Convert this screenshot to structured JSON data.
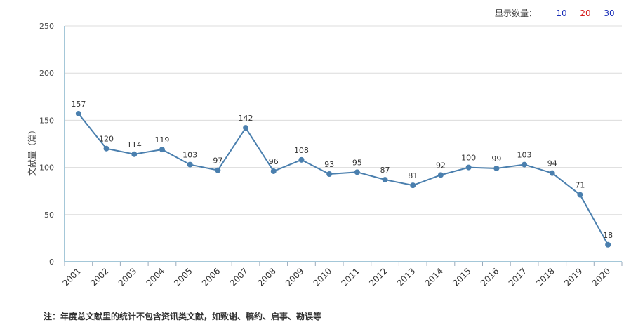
{
  "display": {
    "label": "显示数量：",
    "options": [
      {
        "label": "10",
        "color": "#1a2fb8"
      },
      {
        "label": "20",
        "color": "#d61f1f"
      },
      {
        "label": "30",
        "color": "#1a2fb8"
      }
    ]
  },
  "footnote": "注：年度总文献里的统计不包含资讯类文献，如致谢、稿约、启事、勘误等",
  "chart_data": {
    "type": "line",
    "ylabel": "文献量（篇）",
    "ylim": [
      0,
      250
    ],
    "yticks": [
      0,
      50,
      100,
      150,
      200,
      250
    ],
    "grid": true,
    "line_color": "#4a7fae",
    "categories": [
      "2001",
      "2002",
      "2003",
      "2004",
      "2005",
      "2006",
      "2007",
      "2008",
      "2009",
      "2010",
      "2011",
      "2012",
      "2013",
      "2014",
      "2015",
      "2016",
      "2017",
      "2018",
      "2019",
      "2020"
    ],
    "values": [
      157,
      120,
      114,
      119,
      103,
      97,
      142,
      96,
      108,
      93,
      95,
      87,
      81,
      92,
      100,
      99,
      103,
      94,
      71,
      18
    ],
    "data_labels": true
  }
}
